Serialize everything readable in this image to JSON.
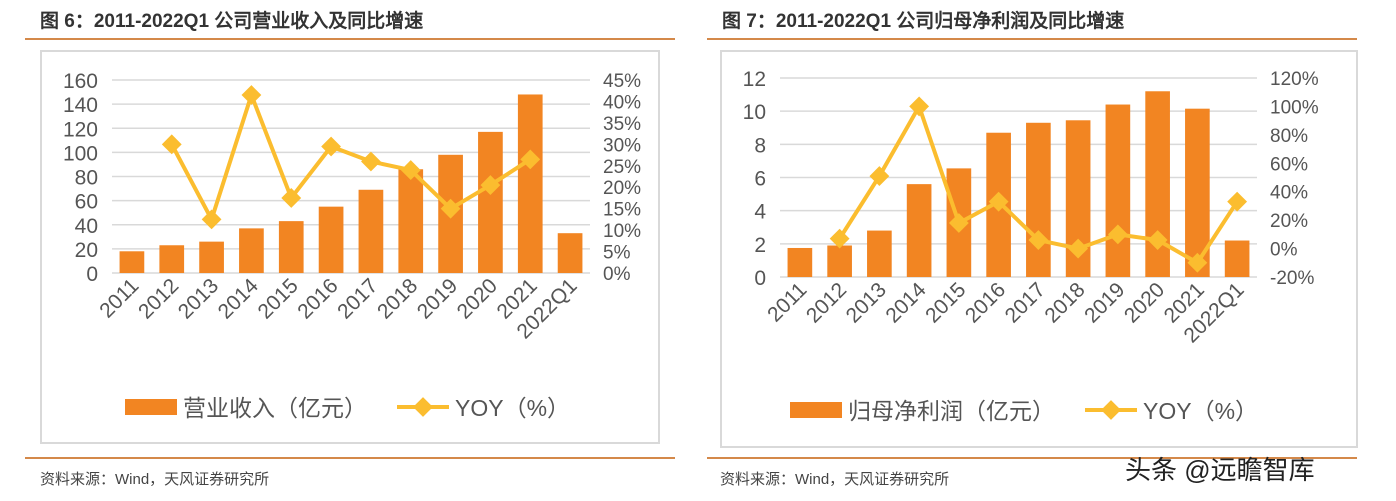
{
  "colors": {
    "bar": "#f28522",
    "line": "#fbbd2f",
    "grid": "#d9d9d9",
    "rule": "#d4894a"
  },
  "watermark": "头条 @远瞻智库",
  "chart_data": [
    {
      "type": "bar",
      "title": "图 6：2011-2022Q1 公司营业收入及同比增速",
      "source": "资料来源：Wind，天风证券研究所",
      "categories": [
        "2011",
        "2012",
        "2013",
        "2014",
        "2015",
        "2016",
        "2017",
        "2018",
        "2019",
        "2020",
        "2021",
        "2022Q1"
      ],
      "series": [
        {
          "name": "营业收入（亿元）",
          "type": "bar",
          "axis": "left",
          "values": [
            18,
            23,
            26,
            37,
            43,
            55,
            69,
            86,
            98,
            117,
            148,
            33
          ]
        },
        {
          "name": "YOY（%）",
          "type": "line",
          "axis": "right",
          "values": [
            null,
            30,
            12.5,
            41.5,
            17.5,
            29.5,
            26,
            24,
            15,
            20.5,
            26.5,
            null
          ]
        }
      ],
      "ylim": [
        0,
        160
      ],
      "yticks": [
        "0",
        "20",
        "40",
        "60",
        "80",
        "100",
        "120",
        "140",
        "160"
      ],
      "y2lim": [
        0,
        45
      ],
      "y2ticks": [
        "0%",
        "5%",
        "10%",
        "15%",
        "20%",
        "25%",
        "30%",
        "35%",
        "40%",
        "45%"
      ],
      "grid": true,
      "legend": "bottom"
    },
    {
      "type": "bar",
      "title": "图 7：2011-2022Q1 公司归母净利润及同比增速",
      "source": "资料来源：Wind，天风证券研究所",
      "categories": [
        "2011",
        "2012",
        "2013",
        "2014",
        "2015",
        "2016",
        "2017",
        "2018",
        "2019",
        "2020",
        "2021",
        "2022Q1"
      ],
      "series": [
        {
          "name": "归母净利润（亿元）",
          "type": "bar",
          "axis": "left",
          "values": [
            1.75,
            1.9,
            2.8,
            5.6,
            6.55,
            8.7,
            9.3,
            9.45,
            10.4,
            11.2,
            10.15,
            2.2
          ]
        },
        {
          "name": "YOY（%）",
          "type": "line",
          "axis": "right",
          "values": [
            null,
            7,
            51,
            100,
            18,
            33,
            6,
            0,
            10,
            6,
            -10,
            33
          ]
        }
      ],
      "ylim": [
        0,
        12
      ],
      "yticks": [
        "0",
        "2",
        "4",
        "6",
        "8",
        "10",
        "12"
      ],
      "y2lim": [
        -20,
        120
      ],
      "y2ticks": [
        "-20%",
        "0%",
        "20%",
        "40%",
        "60%",
        "80%",
        "100%",
        "120%"
      ],
      "grid": true,
      "legend": "bottom"
    }
  ]
}
